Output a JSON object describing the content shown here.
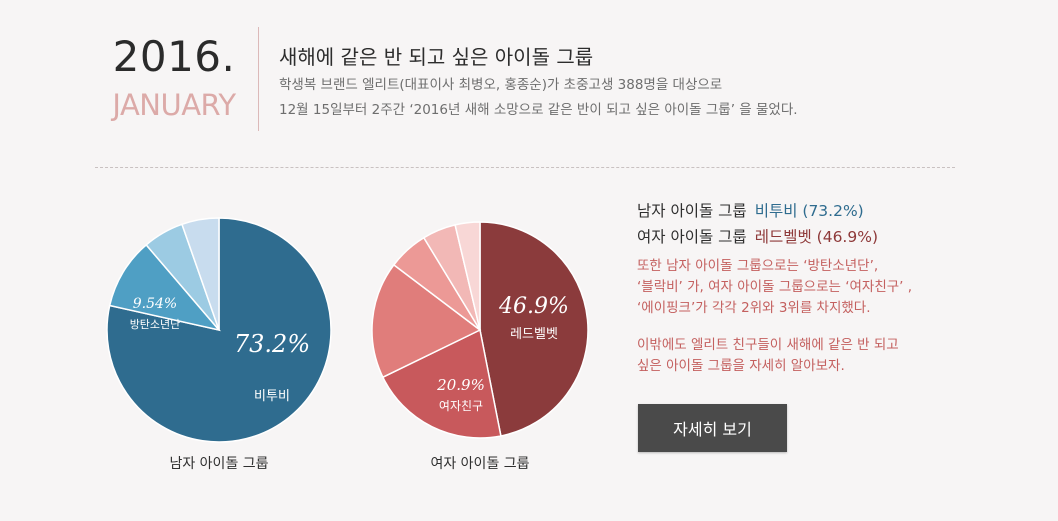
{
  "header": {
    "year": "2016.",
    "month": "JANUARY",
    "headline": "새해에 같은 반 되고 싶은 아이돌 그룹",
    "desc_line1": "학생복 브랜드 엘리트(대표이사 최병오, 홍종순)가 초중고생 388명을 대상으로",
    "desc_line2": "12월 15일부터 2주간 ‘2016년 새해 소망으로 같은 반이 되고 싶은 아이돌 그룹’ 을 물었다."
  },
  "chart_data": [
    {
      "type": "pie",
      "title": "남자 아이돌 그룹",
      "slices": [
        {
          "label": "비투비",
          "value": 73.2,
          "pct_text": "73.2%",
          "color": "#2f6c8f"
        },
        {
          "label": "방탄소년단",
          "value": 9.54,
          "pct_text": "9.54%",
          "color": "#4f9fc4"
        },
        {
          "label": "",
          "value": 5.5,
          "pct_text": "",
          "color": "#9ccbe3"
        },
        {
          "label": "",
          "value": 5.0,
          "pct_text": "",
          "color": "#c8dcee"
        }
      ]
    },
    {
      "type": "pie",
      "title": "여자 아이돌 그룹",
      "slices": [
        {
          "label": "레드벨벳",
          "value": 46.9,
          "pct_text": "46.9%",
          "color": "#8b3b3c"
        },
        {
          "label": "여자친구",
          "value": 20.9,
          "pct_text": "20.9%",
          "color": "#c8595c"
        },
        {
          "label": "",
          "value": 17.5,
          "pct_text": "",
          "color": "#e07d7b"
        },
        {
          "label": "",
          "value": 6.0,
          "pct_text": "",
          "color": "#ec9996"
        },
        {
          "label": "",
          "value": 5.0,
          "pct_text": "",
          "color": "#f2b8b6"
        },
        {
          "label": "",
          "value": 3.7,
          "pct_text": "",
          "color": "#f8d7d6"
        }
      ]
    }
  ],
  "summary": {
    "male_label": "남자 아이돌 그룹",
    "male_winner": "비투비 (73.2%)",
    "female_label": "여자 아이돌 그룹",
    "female_winner": "레드벨벳 (46.9%)"
  },
  "note1": [
    "또한 남자 아이돌 그룹으로는 ‘방탄소년단’,",
    "‘블락비’ 가, 여자 아이돌 그룹으로는 ‘여자친구’ ,",
    "‘에이핑크’가 각각 2위와 3위를 차지했다."
  ],
  "note2": [
    "이밖에도 엘리트 친구들이 새해에 같은 반 되고",
    "싶은 아이돌 그룹을  자세히 알아보자."
  ],
  "button_label": "자세히 보기"
}
